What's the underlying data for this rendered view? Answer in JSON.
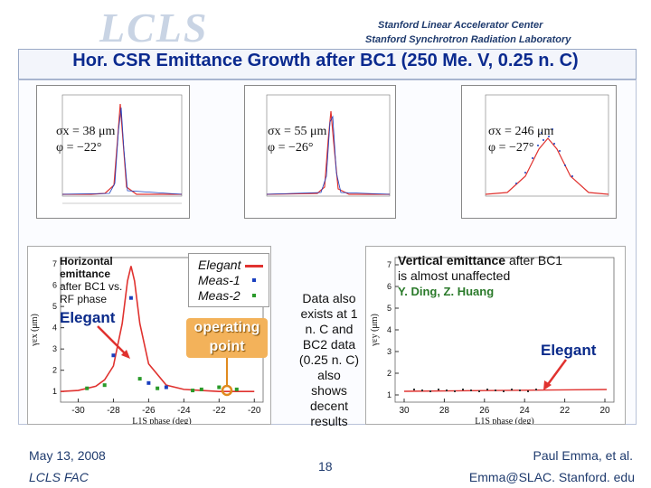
{
  "header": {
    "logo": "LCLS",
    "line1": "Stanford Linear Accelerator Center",
    "line2": "Stanford Synchrotron Radiation Laboratory"
  },
  "title": "Hor. CSR Emittance Growth after BC1 (250 Me. V, 0.25 n. C)",
  "top_plots": {
    "left": {
      "sigma": "σx = 38 μm",
      "phi": "φ = −22°"
    },
    "middle": {
      "sigma": "σx = 55 μm",
      "phi": "φ = −26°"
    },
    "right": {
      "sigma": "σx = 246 μm",
      "phi": "φ = −27°"
    }
  },
  "left_chart": {
    "note_title": "Horizontal",
    "note_line2": "emittance",
    "note_line3": "after BC1 vs.",
    "note_line4": "RF phase",
    "elegant_label": "Elegant",
    "legend": {
      "l1": "Elegant",
      "l2": "Meas-1",
      "l3": "Meas-2"
    },
    "operating_point_1": "operating",
    "operating_point_2": "point",
    "xlabel": "L1S phase (deg)",
    "ylabel": "γεx (μm)"
  },
  "chart_data": {
    "type": "line",
    "title": "Horizontal emittance after BC1 vs. RF phase",
    "xlabel": "L1S phase (deg)",
    "ylabel": "γεx (μm)",
    "x_ticks": [
      "-30",
      "-28",
      "-26",
      "-24",
      "-22",
      "-20"
    ],
    "y_ticks": [
      "7",
      "6",
      "5",
      "4",
      "3",
      "2",
      "1"
    ],
    "xlim": [
      -31,
      -19.5
    ],
    "ylim": [
      0.5,
      7.3
    ],
    "series": [
      {
        "name": "Elegant",
        "x": [
          -31,
          -30,
          -29,
          -28.5,
          -28,
          -27.5,
          -27.2,
          -27,
          -26.8,
          -26.5,
          -26,
          -25,
          -24,
          -23,
          -22,
          -21,
          -20
        ],
        "values": [
          1.0,
          1.05,
          1.25,
          1.55,
          2.2,
          4.2,
          6.2,
          6.9,
          6.2,
          4.2,
          2.3,
          1.3,
          1.1,
          1.05,
          1.0,
          1.0,
          1.0
        ]
      },
      {
        "name": "Meas-1",
        "x": [
          -28,
          -27,
          -26,
          -25
        ],
        "values": [
          2.7,
          5.4,
          1.4,
          1.2
        ]
      },
      {
        "name": "Meas-2",
        "x": [
          -29.5,
          -28.5,
          -26.5,
          -25.5,
          -23.5,
          -23,
          -22,
          -21
        ],
        "values": [
          1.15,
          1.3,
          1.6,
          1.15,
          1.05,
          1.1,
          1.2,
          1.1
        ]
      }
    ]
  },
  "middle_text": {
    "l1": "Data also",
    "l2": "exists at 1",
    "l3": "n. C and",
    "l4": "BC2 data",
    "l5": "(0.25 n. C)",
    "l6": "also",
    "l7": "shows",
    "l8": "decent",
    "l9": "results"
  },
  "right_chart": {
    "vert_bold": "Vertical emittance",
    "vert_rest": " after BC1",
    "line2": "is almost unaffected",
    "authors": "Y. Ding, Z. Huang",
    "elegant_label": "Elegant",
    "xlabel": "L1S phase (deg)",
    "ylabel": "γεy (μm)",
    "x_ticks": [
      "30",
      "28",
      "26",
      "24",
      "22",
      "20"
    ],
    "y_ticks": [
      "7",
      "6",
      "5",
      "4",
      "3",
      "2",
      "1"
    ]
  },
  "footer": {
    "date": "May 13, 2008",
    "fac": "LCLS FAC",
    "page": "18",
    "author": "Paul Emma, et al.",
    "email": "Emma@SLAC. Stanford. edu"
  },
  "colors": {
    "title": "#0b2a8f",
    "elegant_line": "#e0322f",
    "meas1": "#1a3fbf",
    "meas2": "#2a9a2a",
    "operating": "#f3b25a"
  }
}
